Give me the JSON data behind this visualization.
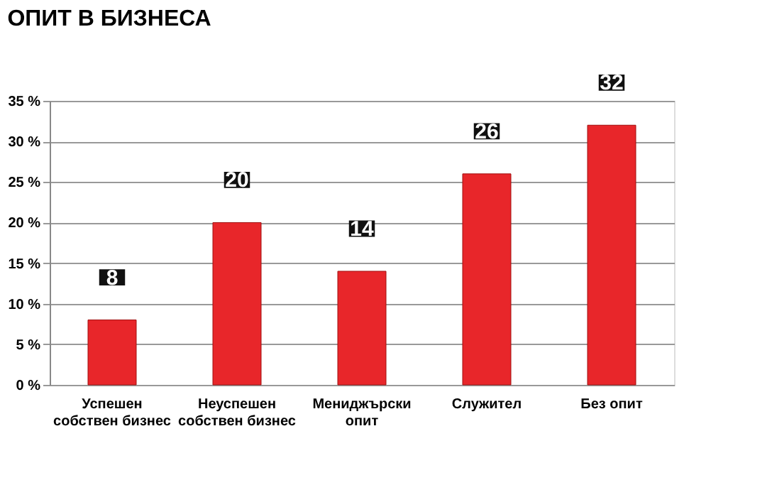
{
  "chart_data": {
    "type": "bar",
    "title": "ОПИТ В БИЗНЕСА",
    "categories": [
      "Успешен\nсобствен бизнес",
      "Неуспешен\nсобствен бизнес",
      "Мениджърски\nопит",
      "Служител",
      "Без опит"
    ],
    "values": [
      8,
      20,
      14,
      26,
      32
    ],
    "color": "#e8262a",
    "ylim": [
      0,
      35
    ],
    "yticks": [
      {
        "value": 0,
        "label": "0 %"
      },
      {
        "value": 5,
        "label": "5 %"
      },
      {
        "value": 10,
        "label": "10 %"
      },
      {
        "value": 15,
        "label": "15 %"
      },
      {
        "value": 20,
        "label": "20 %"
      },
      {
        "value": 25,
        "label": "25 %"
      },
      {
        "value": 30,
        "label": "30 %"
      },
      {
        "value": 35,
        "label": "35 %"
      }
    ],
    "grid": "y",
    "data_labels": true
  }
}
